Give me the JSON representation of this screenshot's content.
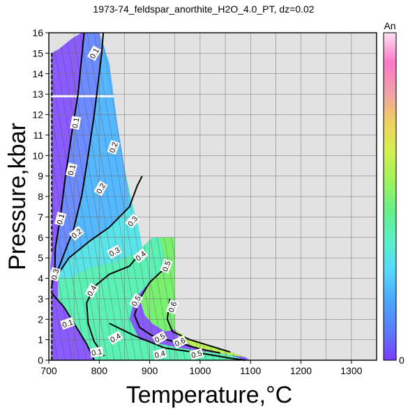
{
  "chart_data": {
    "type": "heatmap",
    "title": "1973-74_feldspar_anorthite_H2O_4.0_PT, dz=0.02",
    "xlabel": "Temperature,°C",
    "ylabel": "Pressure,kbar",
    "xlim": [
      700,
      1350
    ],
    "ylim": [
      0,
      16
    ],
    "xticks": [
      700,
      800,
      900,
      1000,
      1100,
      1200,
      1300
    ],
    "yticks": [
      0,
      1,
      2,
      3,
      4,
      5,
      6,
      7,
      8,
      9,
      10,
      11,
      12,
      13,
      14,
      15,
      16
    ],
    "grid": true,
    "colorbar": {
      "label": "An",
      "min_label": "0",
      "min": 0,
      "max": 1,
      "colors": [
        "#7a3cff",
        "#5a7cff",
        "#4aa8ff",
        "#55d8ff",
        "#5af0c8",
        "#66f08a",
        "#9cf25a",
        "#d4f04e",
        "#f0d060",
        "#f0a0a8",
        "#ff78c8",
        "#ffe0f0"
      ]
    },
    "background_color": "#e2e2e2",
    "domain_outline": [
      [
        705,
        0
      ],
      [
        705,
        3.5
      ],
      [
        703,
        4.6
      ],
      [
        706,
        5.3
      ],
      [
        705,
        15.0
      ],
      [
        720,
        15.2
      ],
      [
        745,
        15.7
      ],
      [
        770,
        16
      ],
      [
        800,
        16
      ],
      [
        820,
        14.5
      ],
      [
        836,
        11.5
      ],
      [
        853,
        9.0
      ],
      [
        867,
        7.5
      ],
      [
        878,
        6.5
      ],
      [
        885,
        5.5
      ],
      [
        905,
        6.0
      ],
      [
        920,
        6.0
      ],
      [
        950,
        6.0
      ],
      [
        950,
        1.5
      ],
      [
        980,
        1.0
      ],
      [
        1020,
        0.7
      ],
      [
        1060,
        0.4
      ],
      [
        1090,
        0.15
      ],
      [
        1098,
        0
      ]
    ],
    "region_fill": [
      {
        "level": "An < 0.1",
        "color": "#8a5cff",
        "points": [
          [
            705,
            0
          ],
          [
            705,
            3.5
          ],
          [
            703,
            4.6
          ],
          [
            706,
            5.3
          ],
          [
            705,
            15.0
          ],
          [
            720,
            15.2
          ],
          [
            745,
            15.7
          ],
          [
            765,
            16
          ],
          [
            770,
            16
          ],
          [
            758,
            13
          ],
          [
            745,
            11
          ],
          [
            733,
            9
          ],
          [
            723,
            7
          ],
          [
            713,
            5.5
          ],
          [
            712,
            4.5
          ],
          [
            718,
            3.0
          ],
          [
            745,
            2.0
          ],
          [
            775,
            0.8
          ],
          [
            790,
            0
          ]
        ]
      },
      {
        "level": "0.1 - 0.2",
        "color": "#6c8cff",
        "points": [
          [
            770,
            16
          ],
          [
            800,
            16
          ],
          [
            805,
            15
          ],
          [
            790,
            12
          ],
          [
            778,
            10
          ],
          [
            765,
            8
          ],
          [
            748,
            6.3
          ],
          [
            735,
            5.5
          ],
          [
            715,
            4.2
          ],
          [
            712,
            4.5
          ],
          [
            713,
            5.5
          ],
          [
            723,
            7
          ],
          [
            733,
            9
          ],
          [
            745,
            11
          ],
          [
            758,
            13
          ]
        ]
      },
      {
        "level": "0.2 - 0.3",
        "color": "#55b8ff",
        "points": [
          [
            800,
            16
          ],
          [
            820,
            14.5
          ],
          [
            836,
            11.5
          ],
          [
            850,
            9.0
          ],
          [
            860,
            7.5
          ],
          [
            820,
            6.5
          ],
          [
            780,
            5.8
          ],
          [
            740,
            5.0
          ],
          [
            718,
            4.2
          ],
          [
            715,
            4.2
          ],
          [
            735,
            5.5
          ],
          [
            748,
            6.3
          ],
          [
            765,
            8
          ],
          [
            778,
            10
          ],
          [
            790,
            12
          ],
          [
            805,
            15
          ]
        ]
      },
      {
        "level": "0.3 - 0.4",
        "color": "#5ae4e8",
        "points": [
          [
            836,
            11.5
          ],
          [
            853,
            9.0
          ],
          [
            867,
            7.5
          ],
          [
            878,
            6.5
          ],
          [
            885,
            5.5
          ],
          [
            870,
            5.2
          ],
          [
            830,
            4.8
          ],
          [
            780,
            4.5
          ],
          [
            740,
            4.0
          ],
          [
            718,
            4.0
          ],
          [
            718,
            4.2
          ],
          [
            740,
            5.0
          ],
          [
            780,
            5.8
          ],
          [
            820,
            6.5
          ],
          [
            860,
            7.5
          ]
        ]
      },
      {
        "level": "0.4 - 0.5",
        "color": "#5cf0b4",
        "points": [
          [
            718,
            4.0
          ],
          [
            740,
            4.0
          ],
          [
            780,
            4.5
          ],
          [
            830,
            4.8
          ],
          [
            870,
            5.2
          ],
          [
            885,
            5.5
          ],
          [
            905,
            6.0
          ],
          [
            920,
            6.0
          ],
          [
            935,
            4.5
          ],
          [
            900,
            3.8
          ],
          [
            870,
            3.0
          ],
          [
            860,
            2.0
          ],
          [
            880,
            1.0
          ],
          [
            960,
            0.6
          ],
          [
            1060,
            0.25
          ],
          [
            1090,
            0
          ],
          [
            790,
            0
          ],
          [
            775,
            0.8
          ],
          [
            745,
            2.0
          ],
          [
            718,
            3.0
          ]
        ]
      },
      {
        "level": "0.5 - 0.6",
        "color": "#7af070",
        "points": [
          [
            920,
            6.0
          ],
          [
            950,
            6.0
          ],
          [
            950,
            1.5
          ],
          [
            930,
            1.4
          ],
          [
            905,
            1.8
          ],
          [
            890,
            2.2
          ],
          [
            880,
            3.0
          ],
          [
            900,
            3.8
          ],
          [
            935,
            4.5
          ]
        ]
      },
      {
        "level": "> 0.6",
        "color": "#b8f056",
        "points": [
          [
            950,
            1.5
          ],
          [
            980,
            1.0
          ],
          [
            1020,
            0.7
          ],
          [
            1060,
            0.4
          ],
          [
            1090,
            0.15
          ],
          [
            1060,
            0.25
          ],
          [
            1000,
            0.5
          ],
          [
            960,
            1.0
          ]
        ]
      }
    ],
    "contours": [
      {
        "level": "0.1",
        "points": [
          [
            705,
            3.5
          ],
          [
            712,
            4.5
          ],
          [
            713,
            5.5
          ],
          [
            723,
            7
          ],
          [
            733,
            9
          ],
          [
            745,
            11
          ],
          [
            758,
            13
          ],
          [
            770,
            16
          ]
        ]
      },
      {
        "level": "0.1",
        "points": [
          [
            705,
            3.3
          ],
          [
            730,
            2.6
          ],
          [
            750,
            1.8
          ],
          [
            775,
            0.8
          ],
          [
            790,
            0
          ]
        ]
      },
      {
        "level": "0.2",
        "points": [
          [
            715,
            4.2
          ],
          [
            735,
            5.5
          ],
          [
            748,
            6.3
          ],
          [
            765,
            8
          ],
          [
            778,
            10
          ],
          [
            790,
            12
          ],
          [
            805,
            15
          ],
          [
            808,
            16
          ]
        ]
      },
      {
        "level": "0.3",
        "points": [
          [
            718,
            4.2
          ],
          [
            740,
            5.0
          ],
          [
            780,
            5.8
          ],
          [
            820,
            6.5
          ],
          [
            860,
            7.5
          ],
          [
            875,
            8.5
          ],
          [
            885,
            9.0
          ]
        ]
      },
      {
        "level": "0.4",
        "points": [
          [
            810,
            0.2
          ],
          [
            790,
            0.9
          ],
          [
            778,
            1.8
          ],
          [
            775,
            2.8
          ],
          [
            790,
            3.6
          ],
          [
            820,
            4.2
          ],
          [
            860,
            4.6
          ],
          [
            880,
            5.2
          ]
        ]
      },
      {
        "level": "0.4",
        "points": [
          [
            820,
            1.8
          ],
          [
            870,
            1.2
          ],
          [
            930,
            0.6
          ],
          [
            1000,
            0.35
          ],
          [
            1060,
            0.1
          ],
          [
            1090,
            0
          ]
        ]
      },
      {
        "level": "0.5",
        "points": [
          [
            930,
            4.5
          ],
          [
            900,
            3.8
          ],
          [
            880,
            3.0
          ],
          [
            870,
            2.2
          ],
          [
            880,
            1.6
          ],
          [
            905,
            1.2
          ],
          [
            950,
            0.9
          ],
          [
            1000,
            0.55
          ],
          [
            1040,
            0.35
          ]
        ]
      },
      {
        "level": "0.6",
        "points": [
          [
            940,
            3.0
          ],
          [
            935,
            2.0
          ],
          [
            945,
            1.4
          ],
          [
            980,
            1.0
          ],
          [
            1020,
            0.7
          ],
          [
            1060,
            0.4
          ]
        ]
      }
    ],
    "contour_labels": [
      {
        "text": "0.1",
        "x": 790,
        "y": 15.0,
        "angle": -60
      },
      {
        "text": "0.1",
        "x": 753,
        "y": 11.6,
        "angle": -80
      },
      {
        "text": "0.1",
        "x": 745,
        "y": 9.3,
        "angle": -75
      },
      {
        "text": "0.1",
        "x": 723,
        "y": 6.9,
        "angle": -75
      },
      {
        "text": "0.2",
        "x": 828,
        "y": 10.4,
        "angle": -70
      },
      {
        "text": "0.2",
        "x": 803,
        "y": 8.4,
        "angle": -60
      },
      {
        "text": "0.2",
        "x": 755,
        "y": 6.2,
        "angle": -40
      },
      {
        "text": "0.3",
        "x": 866,
        "y": 6.8,
        "angle": -50
      },
      {
        "text": "0.3",
        "x": 830,
        "y": 5.3,
        "angle": -30
      },
      {
        "text": "0.3",
        "x": 712,
        "y": 4.2,
        "angle": -75
      },
      {
        "text": "0.4",
        "x": 882,
        "y": 5.1,
        "angle": -40
      },
      {
        "text": "0.4",
        "x": 785,
        "y": 3.4,
        "angle": -60
      },
      {
        "text": "0.4",
        "x": 832,
        "y": 1.1,
        "angle": -30
      },
      {
        "text": "0.4",
        "x": 920,
        "y": 0.3,
        "angle": -15
      },
      {
        "text": "0.5",
        "x": 933,
        "y": 4.6,
        "angle": -70
      },
      {
        "text": "0.5",
        "x": 873,
        "y": 2.9,
        "angle": -60
      },
      {
        "text": "0.5",
        "x": 920,
        "y": 1.1,
        "angle": -30
      },
      {
        "text": "0.5",
        "x": 993,
        "y": 0.3,
        "angle": -15
      },
      {
        "text": "0.6",
        "x": 945,
        "y": 2.6,
        "angle": -70
      },
      {
        "text": "0.6",
        "x": 960,
        "y": 0.9,
        "angle": -25
      },
      {
        "text": "0.1",
        "x": 737,
        "y": 1.8,
        "angle": -20
      },
      {
        "text": "0.1",
        "x": 795,
        "y": 0.4,
        "angle": -10
      }
    ]
  }
}
